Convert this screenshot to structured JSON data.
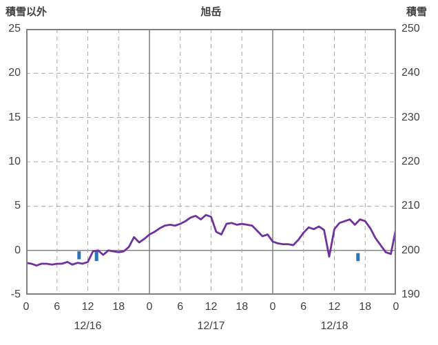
{
  "chart_data": {
    "type": "line",
    "title": "旭岳",
    "left_axis": {
      "label": "積雪以外",
      "min": -5,
      "max": 25,
      "ticks": [
        25,
        20,
        15,
        10,
        5,
        0,
        -5
      ]
    },
    "right_axis": {
      "label": "積雪",
      "min": 190,
      "max": 250,
      "ticks": [
        250,
        240,
        230,
        220,
        210,
        200,
        190
      ]
    },
    "x_axis": {
      "min": 0,
      "max": 72,
      "tick_interval": 6,
      "tick_labels": [
        "0",
        "6",
        "12",
        "18",
        "0",
        "6",
        "12",
        "18",
        "0",
        "6",
        "12",
        "18",
        "0"
      ],
      "day_labels": [
        "12/16",
        "12/17",
        "12/18"
      ]
    },
    "grid": {
      "horizontal": "dashed",
      "vertical": "dashed",
      "day_boundaries": "solid",
      "zero_line": "solid"
    },
    "series": [
      {
        "name": "purple-line",
        "axis": "left",
        "color": "#7030A0",
        "x_start": 0,
        "x_step": 1,
        "values": [
          -1.4,
          -1.5,
          -1.7,
          -1.5,
          -1.5,
          -1.6,
          -1.5,
          -1.5,
          -1.3,
          -1.6,
          -1.4,
          -1.5,
          -1.3,
          -0.1,
          0.0,
          -0.5,
          0.0,
          -0.1,
          -0.2,
          -0.1,
          0.4,
          1.5,
          0.9,
          1.3,
          1.8,
          2.1,
          2.5,
          2.8,
          2.9,
          2.8,
          3.0,
          3.3,
          3.7,
          3.9,
          3.5,
          4.0,
          3.8,
          2.1,
          1.8,
          3.0,
          3.1,
          2.9,
          3.0,
          2.9,
          2.8,
          2.2,
          1.6,
          1.8,
          1.0,
          0.8,
          0.7,
          0.7,
          0.6,
          1.2,
          2.0,
          2.6,
          2.4,
          2.7,
          2.3,
          -0.7,
          2.4,
          3.1,
          3.3,
          3.5,
          2.9,
          3.5,
          3.3,
          2.5,
          1.4,
          0.6,
          -0.2,
          -0.4,
          2.5
        ]
      },
      {
        "name": "blue-bars",
        "axis": "left",
        "color": "#2E75B6",
        "bars": [
          {
            "x": 10.3,
            "y_top": -0.1,
            "y_bottom": -1.0
          },
          {
            "x": 13.7,
            "y_top": 0.0,
            "y_bottom": -1.2
          },
          {
            "x": 64.6,
            "y_top": -0.3,
            "y_bottom": -1.2
          }
        ]
      }
    ]
  },
  "colors": {
    "line": "#7030A0",
    "bars": "#2E75B6",
    "grid": "#A6A6A6",
    "axis": "#7F7F7F",
    "text": "#404040",
    "background": "#FFFFFF"
  }
}
